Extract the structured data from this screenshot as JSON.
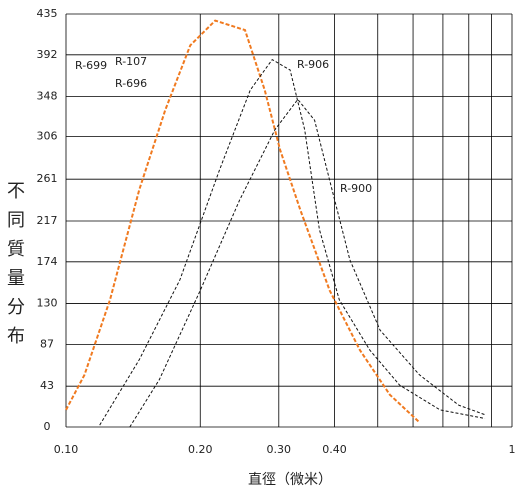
{
  "chart_data": {
    "type": "line",
    "xlabel": "直徑（微米）",
    "ylabel": "不同質量分布",
    "xscale": "log",
    "xlim": [
      0.1,
      1.0
    ],
    "ylim": [
      0,
      435
    ],
    "xticks": [
      {
        "value": 0.1,
        "label": "0.10"
      },
      {
        "value": 0.2,
        "label": "0.20"
      },
      {
        "value": 0.3,
        "label": "0.30"
      },
      {
        "value": 0.4,
        "label": "0.40"
      },
      1.0
    ],
    "xgrid": [
      0.1,
      0.2,
      0.3,
      0.4,
      0.5,
      0.6,
      0.7,
      0.8,
      0.9,
      1.0
    ],
    "yticks": [
      0,
      43,
      87,
      130,
      174,
      217,
      261,
      306,
      348,
      392,
      435
    ],
    "grid": true,
    "series": [
      {
        "name": "R-107",
        "color": "#f07a20",
        "dash": false,
        "x": [
          0.1,
          0.11,
          0.1255,
          0.146,
          0.167,
          0.19,
          0.216,
          0.252,
          0.279,
          0.302,
          0.335,
          0.39,
          0.456,
          0.532,
          0.62
        ],
        "values": [
          18,
          55,
          134,
          250,
          334,
          402,
          428,
          418,
          355,
          292,
          229,
          144,
          81,
          34,
          5
        ]
      },
      {
        "name": "R-906",
        "color": "#111111",
        "dash": true,
        "x": [
          0.119,
          0.146,
          0.18,
          0.221,
          0.259,
          0.29,
          0.318,
          0.343,
          0.37,
          0.41,
          0.48,
          0.56,
          0.69,
          0.87
        ],
        "values": [
          2,
          71,
          155,
          271,
          355,
          387,
          376,
          313,
          208,
          134,
          81,
          44,
          18,
          9
        ]
      },
      {
        "name": "R-900",
        "color": "#111111",
        "dash": true,
        "x": [
          0.139,
          0.162,
          0.2,
          0.245,
          0.294,
          0.331,
          0.361,
          0.39,
          0.433,
          0.506,
          0.62,
          0.76,
          0.87
        ],
        "values": [
          0,
          50,
          144,
          239,
          313,
          345,
          323,
          260,
          176,
          102,
          55,
          23,
          13
        ]
      }
    ],
    "annotations": [
      "R-699",
      "R-696"
    ]
  }
}
